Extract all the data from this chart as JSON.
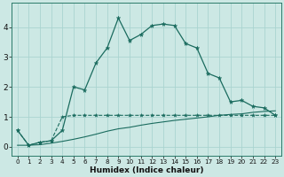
{
  "xlabel": "Humidex (Indice chaleur)",
  "bg_color": "#cce8e4",
  "grid_color": "#aad4d0",
  "line_color": "#1a6b5e",
  "x_ticks": [
    0,
    1,
    2,
    3,
    4,
    5,
    6,
    7,
    8,
    9,
    10,
    11,
    12,
    13,
    14,
    15,
    16,
    17,
    18,
    19,
    20,
    21,
    22,
    23
  ],
  "ylim": [
    -0.3,
    4.8
  ],
  "xlim": [
    -0.5,
    23.5
  ],
  "series1_x": [
    0,
    1,
    2,
    3,
    4,
    5,
    6,
    7,
    8,
    9,
    10,
    11,
    12,
    13,
    14,
    15,
    16,
    17,
    18,
    19,
    20,
    21,
    22,
    23
  ],
  "series1_y": [
    0.55,
    0.05,
    0.15,
    0.2,
    1.0,
    1.05,
    1.05,
    1.05,
    1.05,
    1.05,
    1.05,
    1.05,
    1.05,
    1.05,
    1.05,
    1.05,
    1.05,
    1.05,
    1.05,
    1.05,
    1.05,
    1.05,
    1.05,
    1.05
  ],
  "series2_x": [
    0,
    1,
    2,
    3,
    4,
    5,
    6,
    7,
    8,
    9,
    10,
    11,
    12,
    13,
    14,
    15,
    16,
    17,
    18,
    19,
    20,
    21,
    22,
    23
  ],
  "series2_y": [
    0.55,
    0.05,
    0.15,
    0.2,
    0.55,
    2.0,
    1.9,
    2.8,
    3.3,
    4.3,
    3.55,
    3.75,
    4.05,
    4.1,
    4.05,
    3.45,
    3.3,
    2.45,
    2.3,
    1.5,
    1.55,
    1.35,
    1.3,
    1.05
  ],
  "series3_x": [
    0,
    1,
    2,
    3,
    4,
    5,
    6,
    7,
    8,
    9,
    10,
    11,
    12,
    13,
    14,
    15,
    16,
    17,
    18,
    19,
    20,
    21,
    22,
    23
  ],
  "series3_y": [
    0.05,
    0.05,
    0.07,
    0.12,
    0.18,
    0.25,
    0.33,
    0.42,
    0.52,
    0.6,
    0.65,
    0.72,
    0.78,
    0.83,
    0.88,
    0.92,
    0.96,
    1.0,
    1.05,
    1.08,
    1.1,
    1.15,
    1.18,
    1.2
  ]
}
